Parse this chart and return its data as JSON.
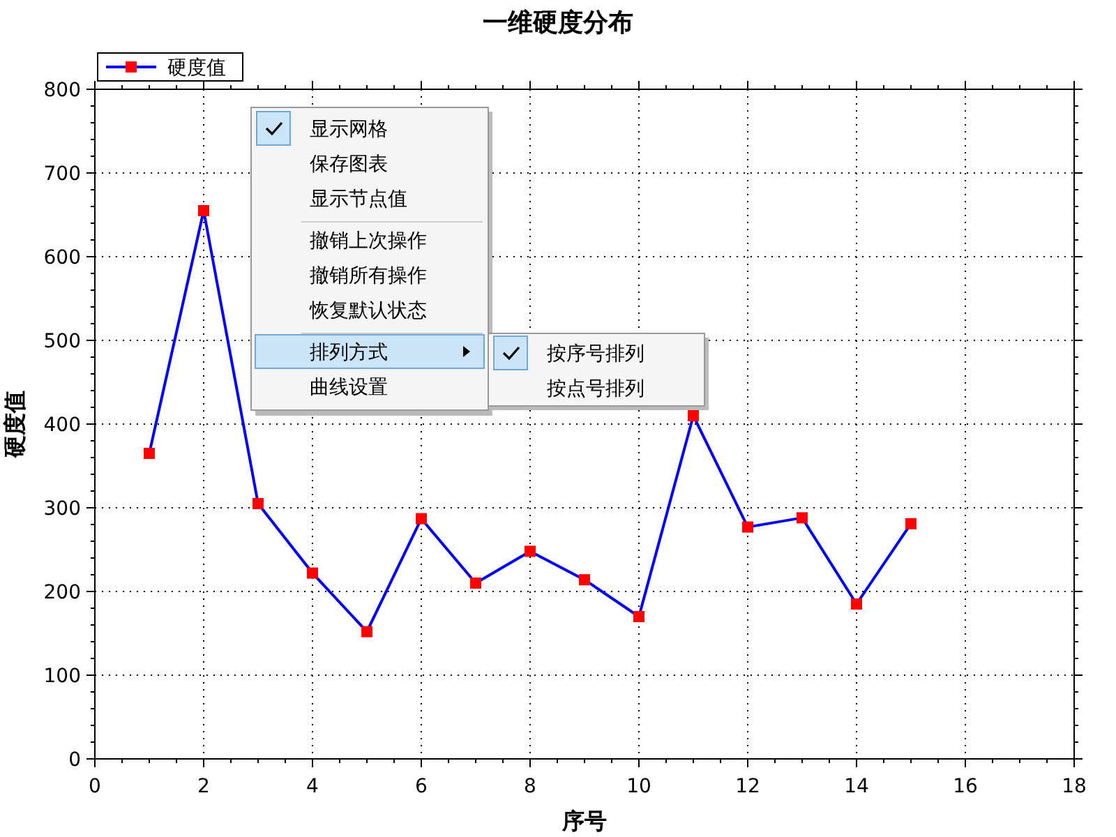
{
  "chart_data": {
    "type": "line",
    "title": "一维硬度分布",
    "xlabel": "序号",
    "ylabel": "硬度值",
    "x": [
      1,
      2,
      3,
      4,
      5,
      6,
      7,
      8,
      9,
      10,
      11,
      12,
      13,
      14,
      15
    ],
    "series": [
      {
        "name": "硬度值",
        "color": "#0000ff",
        "colors": [
          "#ff0000",
          "#ff0000",
          "#ff0000",
          "#ff0000",
          "#ff0000",
          "#ff0000",
          "#ff0000",
          "#ff0000",
          "#ff0000",
          "#ff0000",
          "#ff0000",
          "#ff0000",
          "#ff0000",
          "#ff0000",
          "#ff0000"
        ],
        "values": [
          365,
          655,
          305,
          222,
          152,
          287,
          210,
          248,
          214,
          170,
          410,
          277,
          288,
          185,
          281
        ]
      }
    ],
    "xlim": [
      0,
      18
    ],
    "xticks": [
      0,
      2,
      4,
      6,
      8,
      10,
      12,
      14,
      16,
      18
    ],
    "ylim": [
      0,
      800
    ],
    "yticks": [
      0,
      100,
      200,
      300,
      400,
      500,
      600,
      700,
      800
    ],
    "grid": true,
    "legend": "top left",
    "marker": "square",
    "line_style": "solid",
    "annotations": [
      "显示网格",
      "保存图表",
      "显示节点值",
      "撤销上次操作",
      "撤销所有操作",
      "恢复默认状态",
      "排列方式",
      "曲线设置",
      "按序号排列",
      "按点号排列"
    ]
  }
}
